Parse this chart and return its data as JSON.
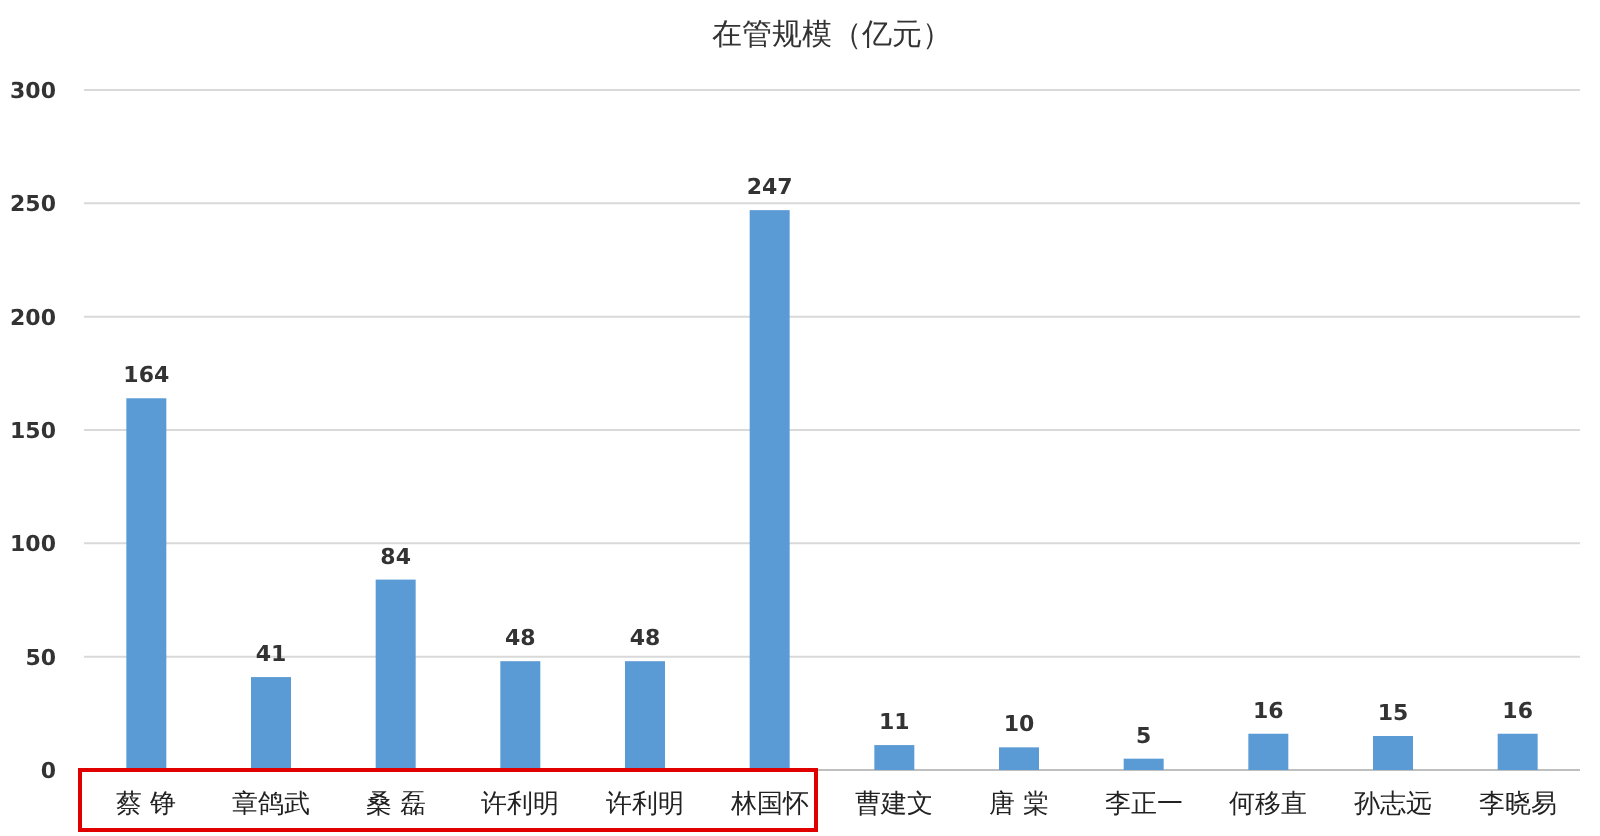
{
  "chart_data": {
    "type": "bar",
    "title": "在管规模（亿元）",
    "categories": [
      "蔡 铮",
      "章鸽武",
      "桑 磊",
      "许利明",
      "许利明",
      "林国怀",
      "曹建文",
      "唐 棠",
      "李正一",
      "何移直",
      "孙志远",
      "李晓易"
    ],
    "values": [
      164,
      41,
      84,
      48,
      48,
      247,
      11,
      10,
      5,
      16,
      15,
      16
    ],
    "color": "#5b9bd5",
    "ylim": [
      0,
      300
    ],
    "yticks": [
      0,
      50,
      100,
      150,
      200,
      250,
      300
    ],
    "grid": "y",
    "data_labels": true
  }
}
